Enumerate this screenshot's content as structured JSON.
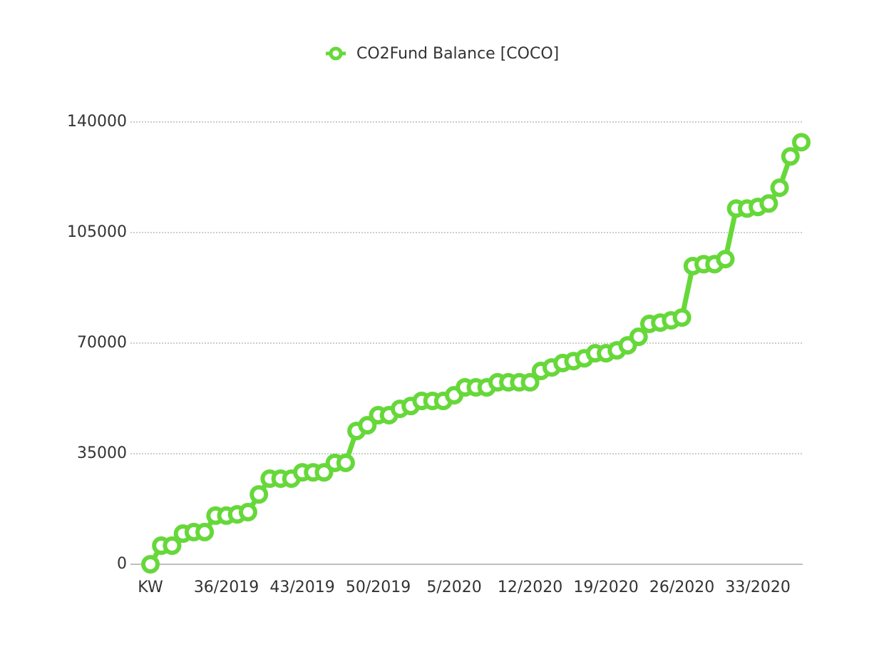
{
  "chart_data": {
    "type": "line",
    "categories": [
      "KW",
      null,
      null,
      null,
      null,
      null,
      null,
      "36/2019",
      null,
      null,
      null,
      null,
      null,
      null,
      "43/2019",
      null,
      null,
      null,
      null,
      null,
      null,
      "50/2019",
      null,
      null,
      null,
      null,
      null,
      null,
      "5/2020",
      null,
      null,
      null,
      null,
      null,
      null,
      "12/2020",
      null,
      null,
      null,
      null,
      null,
      null,
      "19/2020",
      null,
      null,
      null,
      null,
      null,
      null,
      "26/2020",
      null,
      null,
      null,
      null,
      null,
      null,
      "33/2020",
      null,
      null,
      null,
      null
    ],
    "series": [
      {
        "name": "CO2Fund Balance [COCO]",
        "color": "#66d83a",
        "values": [
          0,
          5900,
          5900,
          9700,
          10200,
          10200,
          15400,
          15400,
          15800,
          16500,
          22100,
          27100,
          27100,
          27100,
          29100,
          29100,
          29100,
          32100,
          32100,
          42200,
          44000,
          47200,
          47200,
          49200,
          50100,
          51700,
          51700,
          51700,
          53500,
          56000,
          56000,
          56000,
          57600,
          57600,
          57600,
          57600,
          61200,
          62300,
          63700,
          64300,
          65200,
          66800,
          66800,
          67700,
          69300,
          72000,
          76100,
          76500,
          77200,
          78100,
          94400,
          95000,
          95000,
          96600,
          112600,
          112600,
          113100,
          114200,
          119200,
          129100,
          133600
        ]
      }
    ],
    "ylim": [
      0,
      140000
    ],
    "yticks": [
      0,
      35000,
      70000,
      105000,
      140000
    ],
    "grid": true,
    "legend": "top"
  }
}
